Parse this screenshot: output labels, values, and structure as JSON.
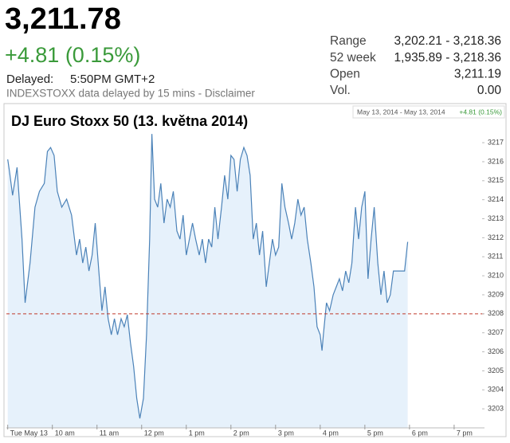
{
  "header": {
    "price": "3,211.78",
    "change": "+4.81 (0.15%)",
    "delayed_label": "Delayed:",
    "delayed_time": "5:50PM GMT+2",
    "notice": "INDEXSTOXX data delayed by 15 mins - Disclaimer"
  },
  "stats": [
    {
      "label": "Range",
      "value": "3,202.21 - 3,218.36"
    },
    {
      "label": "52 week",
      "value": "1,935.89 - 3,218.36"
    },
    {
      "label": "Open",
      "value": "3,211.19"
    },
    {
      "label": "Vol.",
      "value": "0.00"
    }
  ],
  "chart_data": {
    "type": "line",
    "title": "DJ Euro Stoxx 50 (13. května 2014)",
    "date_range": "May 13, 2014 - May 13, 2014",
    "change_label": "+4.81 (0.15%)",
    "x": [
      9.0,
      9.04,
      9.11,
      9.21,
      9.32,
      9.39,
      9.5,
      9.61,
      9.71,
      9.82,
      9.89,
      9.96,
      10.04,
      10.11,
      10.21,
      10.32,
      10.43,
      10.54,
      10.61,
      10.68,
      10.75,
      10.82,
      10.89,
      10.96,
      11.04,
      11.11,
      11.18,
      11.25,
      11.32,
      11.39,
      11.46,
      11.54,
      11.61,
      11.68,
      11.75,
      11.82,
      11.89,
      11.96,
      12.04,
      12.11,
      12.18,
      12.23,
      12.29,
      12.36,
      12.43,
      12.5,
      12.57,
      12.64,
      12.71,
      12.79,
      12.86,
      12.93,
      13.0,
      13.07,
      13.14,
      13.21,
      13.29,
      13.36,
      13.43,
      13.5,
      13.57,
      13.64,
      13.71,
      13.79,
      13.86,
      13.93,
      14.0,
      14.07,
      14.14,
      14.21,
      14.29,
      14.36,
      14.43,
      14.5,
      14.57,
      14.64,
      14.71,
      14.79,
      14.86,
      14.93,
      15.0,
      15.07,
      15.14,
      15.21,
      15.29,
      15.36,
      15.43,
      15.5,
      15.57,
      15.64,
      15.71,
      15.79,
      15.86,
      15.93,
      16.0,
      16.04,
      16.07,
      16.14,
      16.21,
      16.29,
      16.36,
      16.43,
      16.5,
      16.57,
      16.64,
      16.71,
      16.79,
      16.86,
      16.93,
      17.0,
      17.07,
      17.14,
      17.21,
      17.29,
      17.36,
      17.43,
      17.5,
      17.57,
      17.64,
      17.75,
      17.89,
      17.96
    ],
    "series": [
      {
        "name": "DJ Euro Stoxx 50",
        "color": "#4b82b8",
        "fill": "#e6f1fb",
        "values": [
          3216.12,
          3215.49,
          3214.23,
          3215.7,
          3211.93,
          3208.58,
          3210.67,
          3213.61,
          3214.44,
          3214.86,
          3216.54,
          3216.75,
          3216.33,
          3214.44,
          3213.61,
          3214.03,
          3213.19,
          3211.09,
          3211.93,
          3210.67,
          3211.51,
          3210.25,
          3211.09,
          3212.77,
          3210.25,
          3208.16,
          3209.42,
          3207.74,
          3206.9,
          3207.74,
          3206.9,
          3207.74,
          3207.32,
          3207.95,
          3206.48,
          3205.23,
          3203.55,
          3202.5,
          3203.55,
          3206.9,
          3211.93,
          3217.46,
          3214.03,
          3213.61,
          3214.86,
          3212.77,
          3214.03,
          3213.61,
          3214.44,
          3212.35,
          3211.93,
          3213.19,
          3211.09,
          3211.93,
          3212.77,
          3211.93,
          3211.09,
          3211.93,
          3210.67,
          3211.93,
          3211.51,
          3213.61,
          3211.93,
          3213.61,
          3215.28,
          3214.03,
          3216.33,
          3216.12,
          3214.44,
          3216.12,
          3216.75,
          3216.33,
          3215.28,
          3211.93,
          3212.77,
          3211.09,
          3212.35,
          3209.42,
          3210.67,
          3211.93,
          3211.09,
          3211.51,
          3214.86,
          3213.61,
          3212.77,
          3211.93,
          3212.77,
          3214.03,
          3213.19,
          3213.61,
          3211.93,
          3210.67,
          3209.42,
          3207.32,
          3206.9,
          3206.06,
          3206.9,
          3208.58,
          3208.16,
          3209.0,
          3209.42,
          3209.84,
          3209.21,
          3210.25,
          3209.63,
          3210.67,
          3213.61,
          3211.93,
          3213.61,
          3214.44,
          3209.84,
          3211.93,
          3213.61,
          3210.67,
          3209.0,
          3210.25,
          3208.58,
          3209.0,
          3210.25,
          3210.25,
          3210.25,
          3211.78
        ]
      }
    ],
    "reference_line": 3208,
    "reference_color": "#c0392b",
    "xlim": [
      8.97,
      19.68
    ],
    "ylim": [
      3202,
      3217.8
    ],
    "xticks": [
      {
        "value": 9,
        "label": "Tue May 13"
      },
      {
        "value": 10,
        "label": "10 am"
      },
      {
        "value": 11,
        "label": "11 am"
      },
      {
        "value": 12,
        "label": "12 pm"
      },
      {
        "value": 13,
        "label": "1 pm"
      },
      {
        "value": 14,
        "label": "2 pm"
      },
      {
        "value": 15,
        "label": "3 pm"
      },
      {
        "value": 16,
        "label": "4 pm"
      },
      {
        "value": 17,
        "label": "5 pm"
      },
      {
        "value": 18,
        "label": "6 pm"
      },
      {
        "value": 19,
        "label": "7 pm"
      }
    ],
    "yticks": [
      3203,
      3204,
      3205,
      3206,
      3207,
      3208,
      3209,
      3210,
      3211,
      3212,
      3213,
      3214,
      3215,
      3216,
      3217
    ],
    "grid": false
  }
}
